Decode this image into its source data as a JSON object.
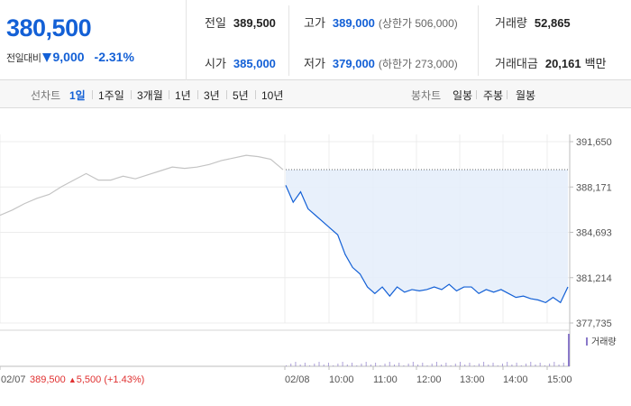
{
  "price": {
    "current": "380,500",
    "change_label": "전일대비",
    "change_value": "9,000",
    "change_rate": "-2.31%",
    "direction": "down"
  },
  "stats": {
    "prev_close": {
      "label": "전일",
      "value": "389,500"
    },
    "high": {
      "label": "고가",
      "value": "389,000",
      "limit": "(상한가 506,000)"
    },
    "volume": {
      "label": "거래량",
      "value": "52,865"
    },
    "open": {
      "label": "시가",
      "value": "385,000"
    },
    "low": {
      "label": "저가",
      "value": "379,000",
      "limit": "(하한가 273,000)"
    },
    "amount": {
      "label": "거래대금",
      "value": "20,161",
      "unit": "백만"
    }
  },
  "tabs": {
    "line_label": "선차트",
    "line_items": [
      {
        "label": "1일",
        "active": true
      },
      {
        "label": "1주일",
        "active": false
      },
      {
        "label": "3개월",
        "active": false
      },
      {
        "label": "1년",
        "active": false
      },
      {
        "label": "3년",
        "active": false
      },
      {
        "label": "5년",
        "active": false
      },
      {
        "label": "10년",
        "active": false
      }
    ],
    "candle_label": "봉차트",
    "candle_items": [
      {
        "label": "일봉"
      },
      {
        "label": "주봉"
      },
      {
        "label": "월봉"
      }
    ]
  },
  "colors": {
    "blue": "#1360d6",
    "red": "#e03131",
    "prev_day_line": "#c4c4c4",
    "fill": "#e6eefb",
    "volume_label": "#8a79c9"
  },
  "chart_data": {
    "type": "line",
    "y_ticks": [
      "391,650",
      "388,171",
      "384,693",
      "381,214",
      "377,735"
    ],
    "ylim": [
      377735,
      391650
    ],
    "x_labels": [
      "02/07",
      "02/08",
      "10:00",
      "11:00",
      "12:00",
      "13:00",
      "14:00",
      "15:00"
    ],
    "reference_price": 389500,
    "prev_day_summary": {
      "date": "02/07",
      "price": "389,500",
      "change": "5,500",
      "rate": "(+1.43%)"
    },
    "volume_label": "거래량",
    "series": [
      {
        "values": [
          386000,
          386400,
          386900,
          387300,
          387600,
          388200,
          388700,
          389200,
          388700,
          388700,
          389000,
          388800,
          389100,
          389400,
          389700,
          389600,
          389700,
          389900,
          390200,
          390400,
          390600,
          390500,
          390300,
          389500
        ]
      },
      {
        "values": [
          388300,
          387000,
          387800,
          386500,
          386000,
          385500,
          385000,
          384500,
          383000,
          382000,
          381500,
          380500,
          380000,
          380500,
          379800,
          380500,
          380100,
          380300,
          380200,
          380300,
          380500,
          380300,
          380700,
          380200,
          380500,
          380500,
          380000,
          380300,
          380100,
          380300,
          380000,
          379700,
          379800,
          379600,
          379500,
          379300,
          379700,
          379300,
          380500
        ]
      }
    ]
  }
}
